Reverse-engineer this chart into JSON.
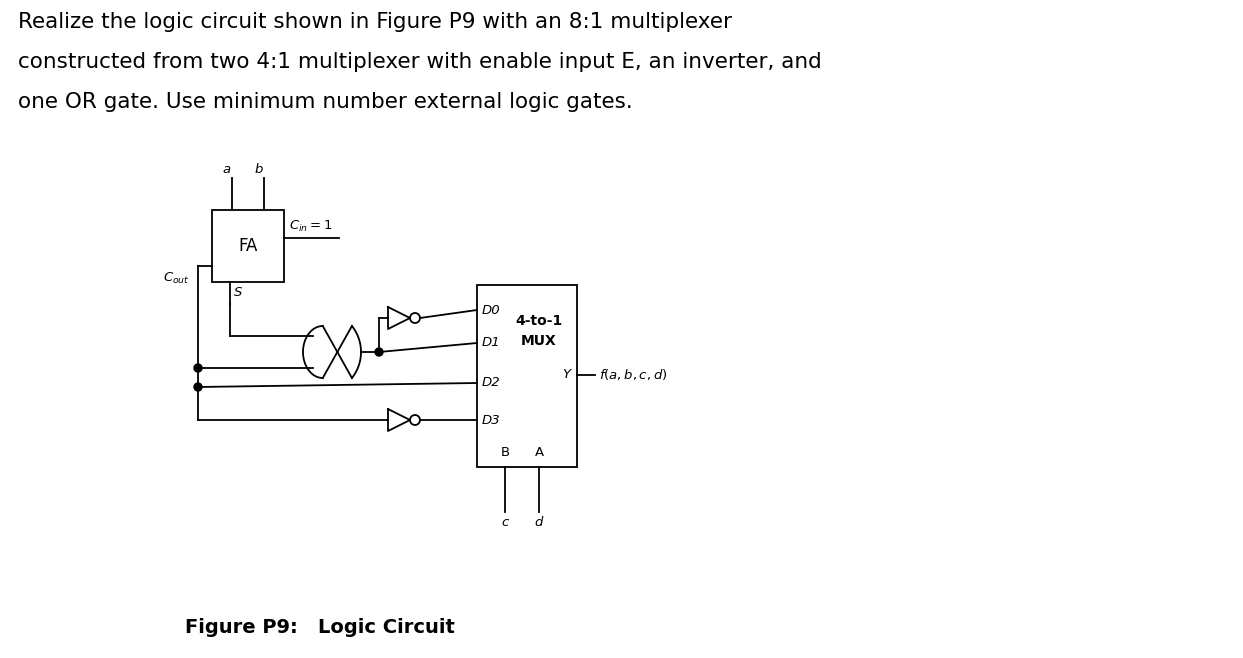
{
  "title_line1": "Realize the logic circuit shown in Figure P9 with an 8:1 multiplexer",
  "title_line2": "constructed from two 4:1 multiplexer with enable input E, an inverter, and",
  "title_line3": "one OR gate. Use minimum number external logic gates.",
  "figure_caption": "Figure P9:   Logic Circuit",
  "background_color": "#ffffff",
  "text_color": "#000000",
  "line_color": "#000000",
  "title_fontsize": 15.5,
  "caption_fontsize": 14,
  "label_fontsize": 10,
  "small_fontsize": 9.5
}
